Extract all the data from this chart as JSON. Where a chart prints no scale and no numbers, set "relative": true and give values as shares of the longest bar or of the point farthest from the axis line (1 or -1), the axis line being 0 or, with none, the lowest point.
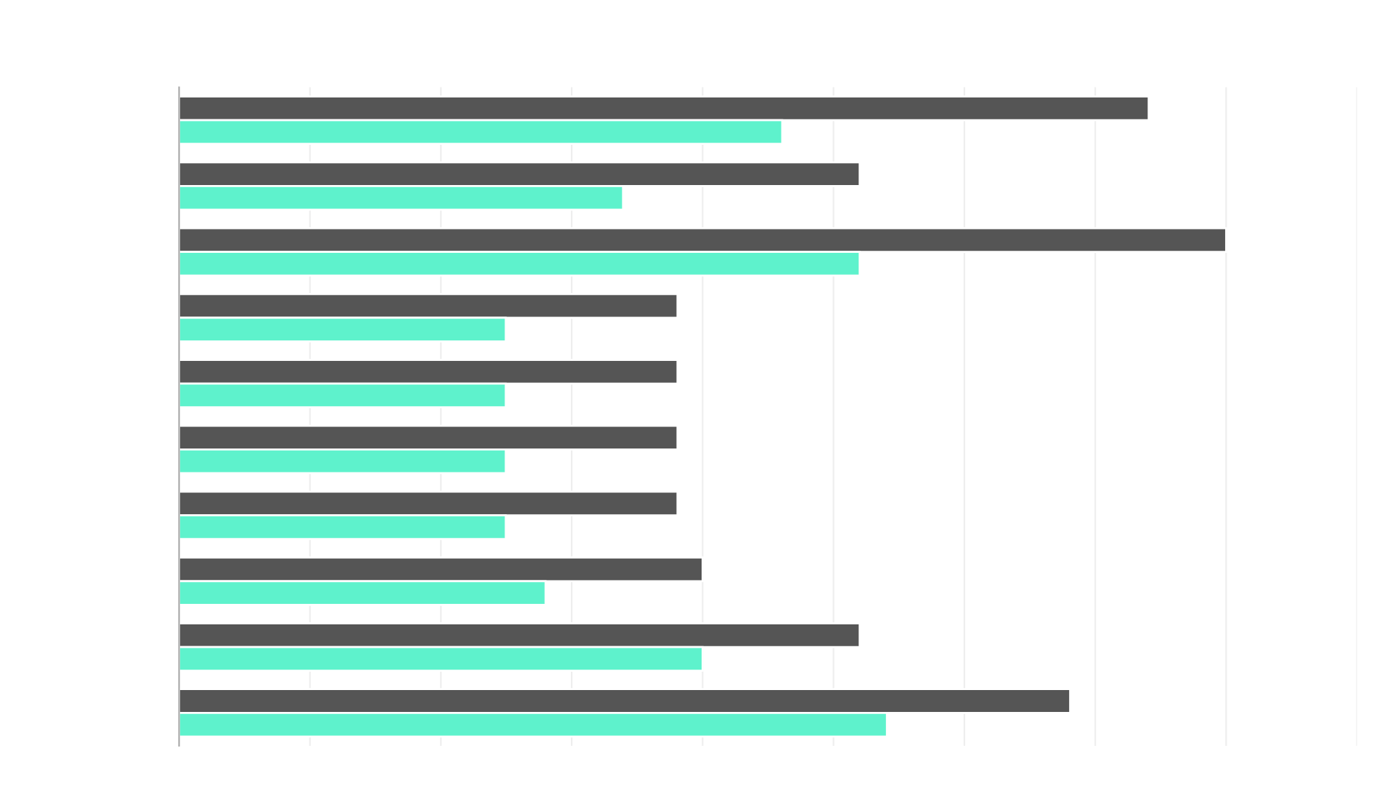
{
  "chart_data": {
    "type": "bar",
    "orientation": "horizontal",
    "relative": true,
    "grid": "x",
    "categories": [
      null,
      null,
      null,
      null,
      null,
      null,
      null,
      null,
      null,
      null
    ],
    "series": [
      {
        "color": "#555555",
        "values": [
          0.926,
          0.65,
          1.0,
          0.476,
          0.476,
          0.476,
          0.476,
          0.5,
          0.65,
          0.851
        ]
      },
      {
        "color": "#5ef2cc",
        "values": [
          0.576,
          0.424,
          0.65,
          0.312,
          0.312,
          0.312,
          0.312,
          0.35,
          0.5,
          0.676
        ]
      }
    ]
  }
}
